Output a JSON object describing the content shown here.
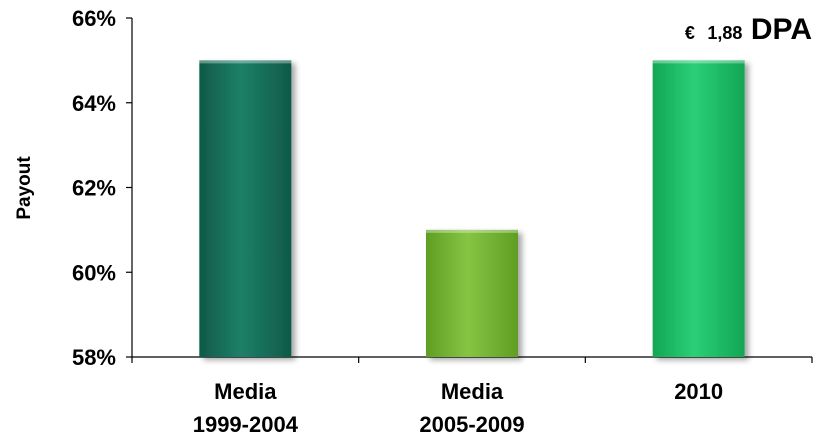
{
  "chart_data": {
    "type": "bar",
    "title": "",
    "xlabel": "",
    "ylabel": "Payout",
    "ylim": [
      58,
      66
    ],
    "y_ticks": [
      58,
      60,
      62,
      64,
      66
    ],
    "y_tick_labels": [
      "58%",
      "60%",
      "62%",
      "64%",
      "66%"
    ],
    "categories": [
      [
        "Media",
        "1999-2004"
      ],
      [
        "Media",
        "2005-2009"
      ],
      [
        "2010"
      ]
    ],
    "values": [
      65,
      61,
      65
    ],
    "bar_colors": [
      "#1a7a63",
      "#7bbf3a",
      "#22c46a"
    ],
    "grid": false,
    "legend": "none",
    "annotation": {
      "prefix": "€",
      "value": "1,88",
      "label": "DPA",
      "position": "top-right"
    }
  }
}
